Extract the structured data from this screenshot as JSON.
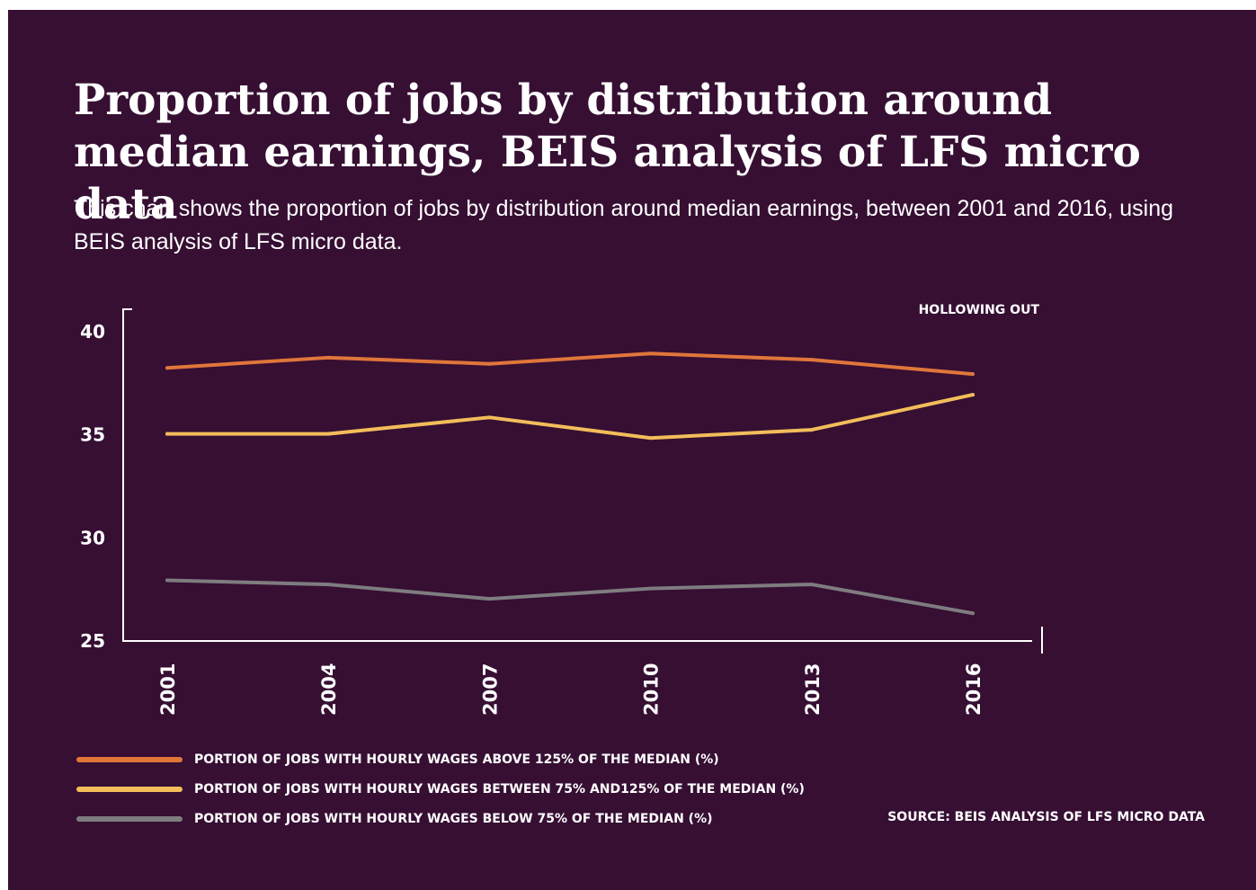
{
  "title": "Proportion of jobs by distribution around median earnings, BEIS analysis of LFS micro data",
  "subtitle": "This chart shows the proportion of jobs by distribution around median earnings, between 2001 and 2016, using BEIS analysis of LFS micro data.",
  "annotation": "HOLLOWING OUT",
  "source": "SOURCE: BEIS ANALYSIS OF LFS MICRO DATA",
  "colors": {
    "background": "#360f33",
    "above": "#e0763a",
    "between": "#f2bd5a",
    "below": "#7f7c80",
    "axis": "#ffffff"
  },
  "chart_data": {
    "type": "line",
    "title": "Proportion of jobs by distribution around median earnings, BEIS analysis of LFS micro data",
    "xlabel": "",
    "ylabel": "",
    "x": [
      "2001",
      "2004",
      "2007",
      "2010",
      "2013",
      "2016"
    ],
    "ylim": [
      25,
      40
    ],
    "yticks": [
      25,
      30,
      35,
      40
    ],
    "grid": false,
    "legend_position": "bottom",
    "series": [
      {
        "name": "PORTION OF JOBS WITH HOURLY WAGES ABOVE 125% OF THE MEDIAN (%)",
        "color": "#e0763a",
        "values": [
          38.2,
          38.7,
          38.4,
          38.9,
          38.6,
          37.9
        ]
      },
      {
        "name": "PORTION OF JOBS WITH HOURLY WAGES BETWEEN 75% AND125% OF THE MEDIAN (%)",
        "color": "#f2bd5a",
        "values": [
          35.0,
          35.0,
          35.8,
          34.8,
          35.2,
          36.9
        ]
      },
      {
        "name": "PORTION OF JOBS WITH HOURLY WAGES BELOW 75% OF THE MEDIAN (%)",
        "color": "#7f7c80",
        "values": [
          27.9,
          27.7,
          27.0,
          27.5,
          27.7,
          26.3
        ]
      }
    ]
  }
}
